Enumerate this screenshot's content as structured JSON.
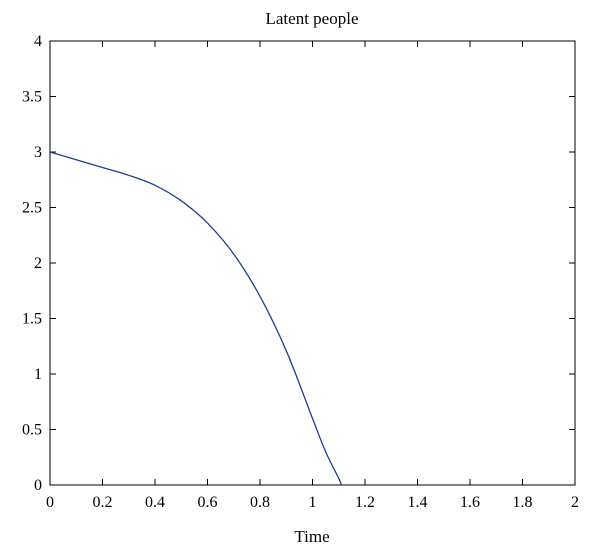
{
  "chart_data": {
    "type": "line",
    "title": "Latent people",
    "xlabel": "Time",
    "ylabel": "",
    "xlim": [
      0,
      2
    ],
    "ylim": [
      0,
      4
    ],
    "xticks": [
      0,
      0.2,
      0.4,
      0.6,
      0.8,
      1,
      1.2,
      1.4,
      1.6,
      1.8,
      2
    ],
    "xtick_labels": [
      "0",
      "0.2",
      "0.4",
      "0.6",
      "0.8",
      "1",
      "1.2",
      "1.4",
      "1.6",
      "1.8",
      "2"
    ],
    "yticks": [
      0,
      0.5,
      1,
      1.5,
      2,
      2.5,
      3,
      3.5,
      4
    ],
    "ytick_labels": [
      "0",
      "0.5",
      "1",
      "1.5",
      "2",
      "2.5",
      "3",
      "3.5",
      "4"
    ],
    "grid": false,
    "legend": "none",
    "series": [
      {
        "color": "#1f3d99",
        "x": [
          0,
          0.1,
          0.2,
          0.3,
          0.4,
          0.5,
          0.6,
          0.7,
          0.8,
          0.9,
          1.0,
          1.05,
          1.1,
          1.11
        ],
        "y": [
          3.0,
          2.93,
          2.86,
          2.79,
          2.7,
          2.56,
          2.36,
          2.08,
          1.7,
          1.21,
          0.6,
          0.3,
          0.06,
          0.0
        ]
      }
    ]
  }
}
